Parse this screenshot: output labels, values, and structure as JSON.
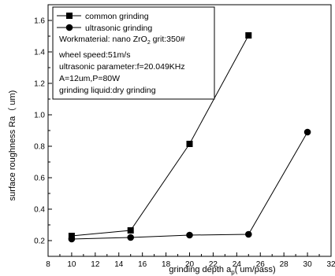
{
  "chart_data": {
    "type": "line",
    "xlabel": "grinding depth a",
    "xlabel_sub": "p",
    "xlabel_unit": "( um/pass)",
    "ylabel": "surface roughness Ra（ um)",
    "xlim": [
      8,
      32
    ],
    "ylim": [
      0.1,
      1.7
    ],
    "xticks": [
      "8",
      "10",
      "12",
      "14",
      "16",
      "18",
      "20",
      "22",
      "24",
      "26",
      "28",
      "30",
      "32"
    ],
    "yticks": [
      "0.2",
      "0.4",
      "0.6",
      "0.8",
      "1.0",
      "1.2",
      "1.4",
      "1.6"
    ],
    "grid": false,
    "legend_position": "top-left",
    "series": [
      {
        "name": "common grinding",
        "marker": "square",
        "x": [
          10,
          15,
          20,
          25
        ],
        "y": [
          0.23,
          0.265,
          0.815,
          1.505
        ]
      },
      {
        "name": "ultrasonic grinding",
        "marker": "circle",
        "x": [
          10,
          15,
          20,
          25,
          30
        ],
        "y": [
          0.21,
          0.22,
          0.235,
          0.24,
          0.89
        ]
      }
    ],
    "annotations": [
      {
        "text": "Workmaterial:  nano ZrO",
        "sub": "2",
        "tail": "  grit:350#"
      },
      {
        "text": "wheel speed:51m/s"
      },
      {
        "text": "ultrasonic parameter:f=20.049KHz"
      },
      {
        "text": "A=12um,P=80W"
      },
      {
        "text": "grinding liquid:dry grinding"
      }
    ]
  }
}
